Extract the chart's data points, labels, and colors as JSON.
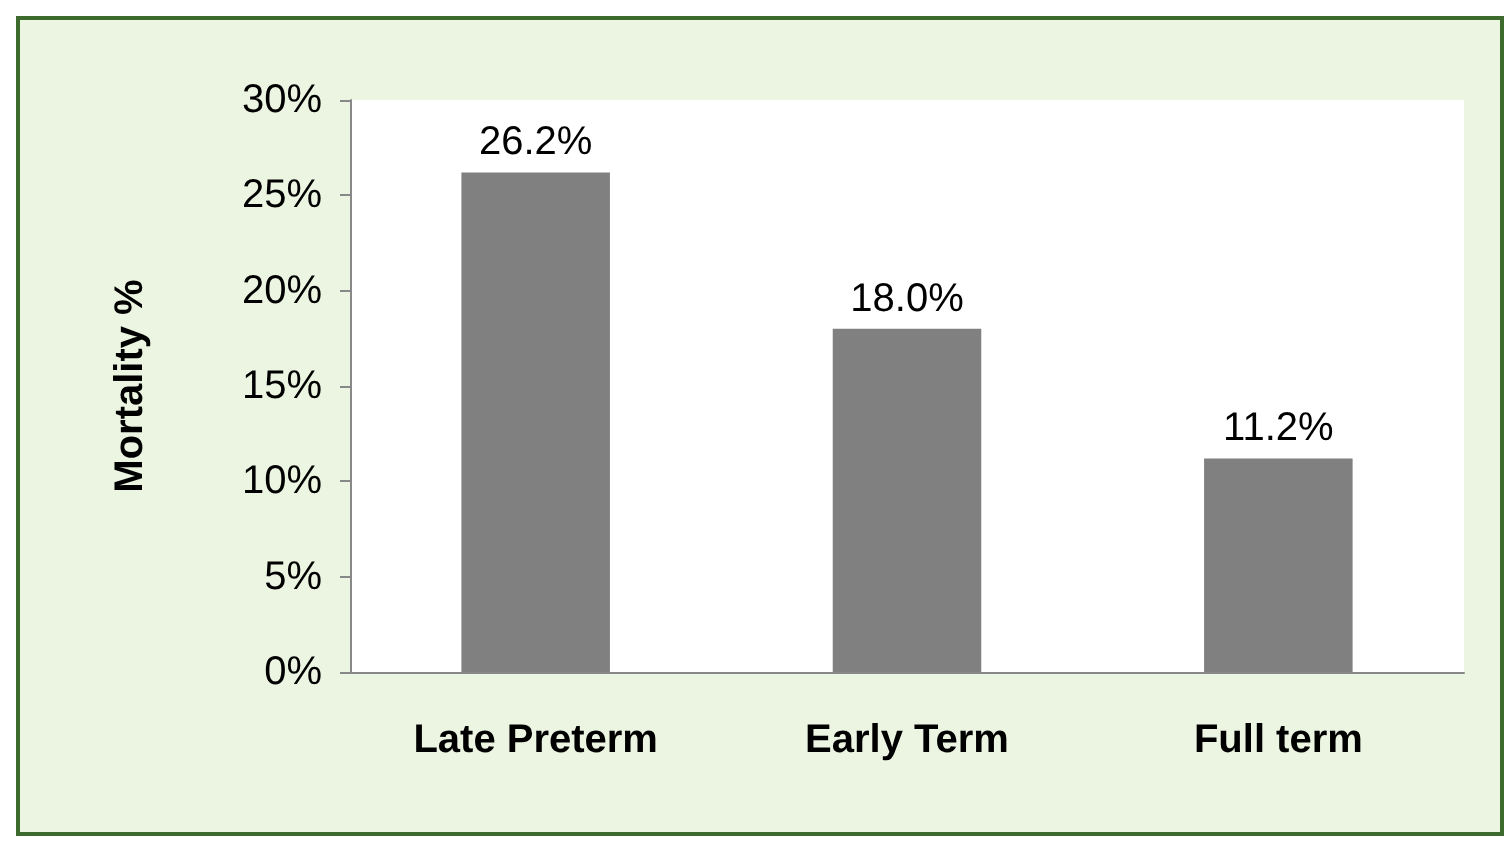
{
  "chart_data": {
    "type": "bar",
    "ylabel": "Mortality %",
    "categories": [
      "Late Preterm",
      "Early Term",
      "Full term"
    ],
    "values": [
      26.2,
      18.0,
      11.2
    ],
    "color": "#808080",
    "value_labels": [
      "26.2%",
      "18.0%",
      "11.2%"
    ],
    "ylim": [
      0,
      30
    ],
    "yticks": [
      {
        "value": 0,
        "label": "0%"
      },
      {
        "value": 5,
        "label": "5%"
      },
      {
        "value": 10,
        "label": "10%"
      },
      {
        "value": 15,
        "label": "15%"
      },
      {
        "value": 20,
        "label": "20%"
      },
      {
        "value": 25,
        "label": "25%"
      },
      {
        "value": 30,
        "label": "30%"
      }
    ],
    "grid": false
  }
}
